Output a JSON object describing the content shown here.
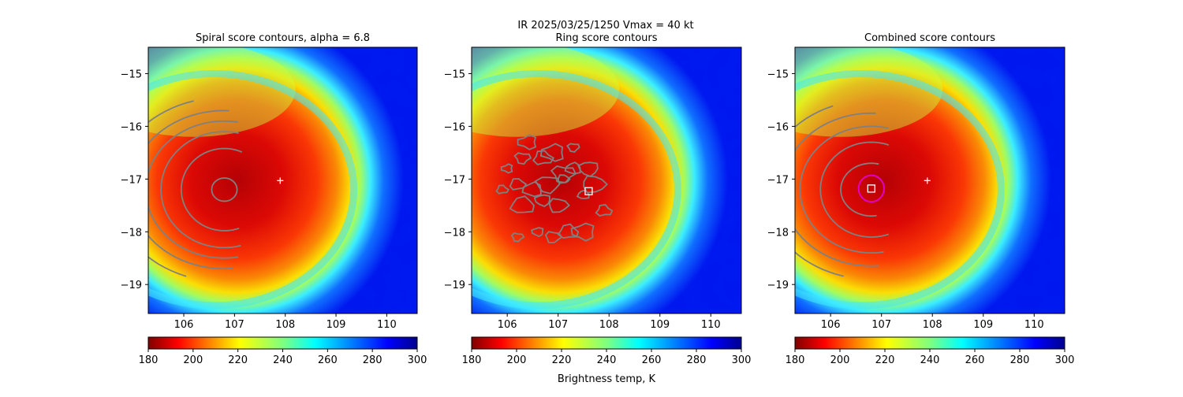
{
  "suptitle": "IR  2025/03/25/1250    Vmax = 40 kt",
  "colorbar_label": "Brightness temp, K",
  "chart_data": [
    {
      "type": "heatmap",
      "id": "spiral",
      "title": "Spiral score contours, alpha =  6.8",
      "xlim": [
        105.3,
        110.6
      ],
      "ylim": [
        -19.55,
        -14.5
      ],
      "xticks": [
        "106",
        "107",
        "108",
        "109",
        "110"
      ],
      "yticks": [
        "−15",
        "−16",
        "−17",
        "−18",
        "−19"
      ],
      "colorbar": {
        "range": [
          180,
          300
        ],
        "ticks": [
          "180",
          "200",
          "220",
          "240",
          "260",
          "280",
          "300"
        ],
        "colormap": "jet_r"
      },
      "contour_color": "#808080",
      "markers": [
        {
          "kind": "plus",
          "lon": 107.9,
          "lat": -17.03,
          "color": "#ffffff"
        }
      ],
      "contour_rings": [
        {
          "lon": 106.8,
          "lat": -17.2,
          "rx": 0.25,
          "ry": 0.22,
          "arc": [
            0,
            360
          ]
        },
        {
          "lon": 106.8,
          "lat": -17.2,
          "rx": 0.85,
          "ry": 0.78,
          "arc": [
            -110,
            115
          ]
        },
        {
          "lon": 106.8,
          "lat": -17.2,
          "rx": 1.25,
          "ry": 1.1,
          "arc": [
            -105,
            105
          ]
        },
        {
          "lon": 106.8,
          "lat": -17.2,
          "rx": 1.55,
          "ry": 1.3,
          "arc": [
            -100,
            100
          ]
        },
        {
          "lon": 106.8,
          "lat": -17.2,
          "rx": 1.85,
          "ry": 1.5,
          "arc": [
            -95,
            95
          ]
        },
        {
          "lon": 106.8,
          "lat": -17.2,
          "rx": 2.2,
          "ry": 1.75,
          "arc": [
            -70,
            75
          ]
        },
        {
          "lon": 106.8,
          "lat": -17.2,
          "rx": 2.6,
          "ry": 2.05,
          "arc": [
            -55,
            45
          ]
        },
        {
          "lon": 106.8,
          "lat": -17.2,
          "rx": 3.1,
          "ry": 2.05,
          "arc": [
            -35,
            25
          ]
        }
      ]
    },
    {
      "type": "heatmap",
      "id": "ring",
      "title": "Ring score contours",
      "xlim": [
        105.3,
        110.6
      ],
      "ylim": [
        -19.55,
        -14.5
      ],
      "xticks": [
        "106",
        "107",
        "108",
        "109",
        "110"
      ],
      "yticks": [
        "−15",
        "−16",
        "−17",
        "−18",
        "−19"
      ],
      "colorbar": {
        "range": [
          180,
          300
        ],
        "ticks": [
          "180",
          "200",
          "220",
          "240",
          "260",
          "280",
          "300"
        ],
        "colormap": "jet_r"
      },
      "contour_color": "#808080",
      "markers": [
        {
          "kind": "square",
          "lon": 107.6,
          "lat": -17.23,
          "color": "#ffffff"
        }
      ],
      "ring_blobs": [
        [
          106.0,
          -16.8
        ],
        [
          106.3,
          -16.6
        ],
        [
          106.7,
          -16.6
        ],
        [
          106.9,
          -16.5
        ],
        [
          107.3,
          -16.4
        ],
        [
          106.2,
          -17.1
        ],
        [
          106.5,
          -17.2
        ],
        [
          106.8,
          -17.1
        ],
        [
          107.1,
          -17.0
        ],
        [
          107.3,
          -16.8
        ],
        [
          107.6,
          -16.8
        ],
        [
          107.7,
          -17.1
        ],
        [
          107.5,
          -17.3
        ],
        [
          106.7,
          -17.4
        ],
        [
          107.0,
          -17.5
        ],
        [
          106.3,
          -17.5
        ],
        [
          106.6,
          -18.0
        ],
        [
          106.9,
          -18.1
        ],
        [
          107.2,
          -18.0
        ],
        [
          107.5,
          -18.0
        ],
        [
          106.2,
          -18.1
        ],
        [
          107.9,
          -17.6
        ],
        [
          106.4,
          -16.3
        ],
        [
          107.1,
          -16.9
        ],
        [
          105.9,
          -17.2
        ]
      ]
    },
    {
      "type": "heatmap",
      "id": "combined",
      "title": "Combined score contours",
      "xlim": [
        105.3,
        110.6
      ],
      "ylim": [
        -19.55,
        -14.5
      ],
      "xticks": [
        "106",
        "107",
        "108",
        "109",
        "110"
      ],
      "yticks": [
        "−15",
        "−16",
        "−17",
        "−18",
        "−19"
      ],
      "colorbar": {
        "range": [
          180,
          300
        ],
        "ticks": [
          "180",
          "200",
          "220",
          "240",
          "260",
          "280",
          "300"
        ],
        "colormap": "jet_r"
      },
      "contour_color": "#808080",
      "markers": [
        {
          "kind": "plus",
          "lon": 107.9,
          "lat": -17.03,
          "color": "#ffffff"
        },
        {
          "kind": "square",
          "lon": 106.8,
          "lat": -17.18,
          "color": "#ffffff"
        },
        {
          "kind": "circle",
          "lon": 106.8,
          "lat": -17.18,
          "r": 0.25,
          "color": "#e000c8"
        }
      ],
      "contour_rings": [
        {
          "lon": 106.8,
          "lat": -17.2,
          "rx": 0.6,
          "ry": 0.5,
          "arc": [
            -100,
            105
          ]
        },
        {
          "lon": 106.8,
          "lat": -17.2,
          "rx": 1.0,
          "ry": 0.9,
          "arc": [
            -110,
            110
          ]
        },
        {
          "lon": 106.8,
          "lat": -17.2,
          "rx": 1.4,
          "ry": 1.2,
          "arc": [
            -100,
            105
          ]
        },
        {
          "lon": 106.8,
          "lat": -17.2,
          "rx": 1.75,
          "ry": 1.45,
          "arc": [
            -95,
            95
          ]
        },
        {
          "lon": 106.8,
          "lat": -17.2,
          "rx": 2.1,
          "ry": 1.7,
          "arc": [
            -75,
            70
          ]
        },
        {
          "lon": 106.8,
          "lat": -17.2,
          "rx": 2.5,
          "ry": 2.0,
          "arc": [
            -50,
            45
          ]
        },
        {
          "lon": 106.8,
          "lat": -17.2,
          "rx": 2.95,
          "ry": 2.05,
          "arc": [
            -35,
            25
          ]
        }
      ]
    }
  ]
}
